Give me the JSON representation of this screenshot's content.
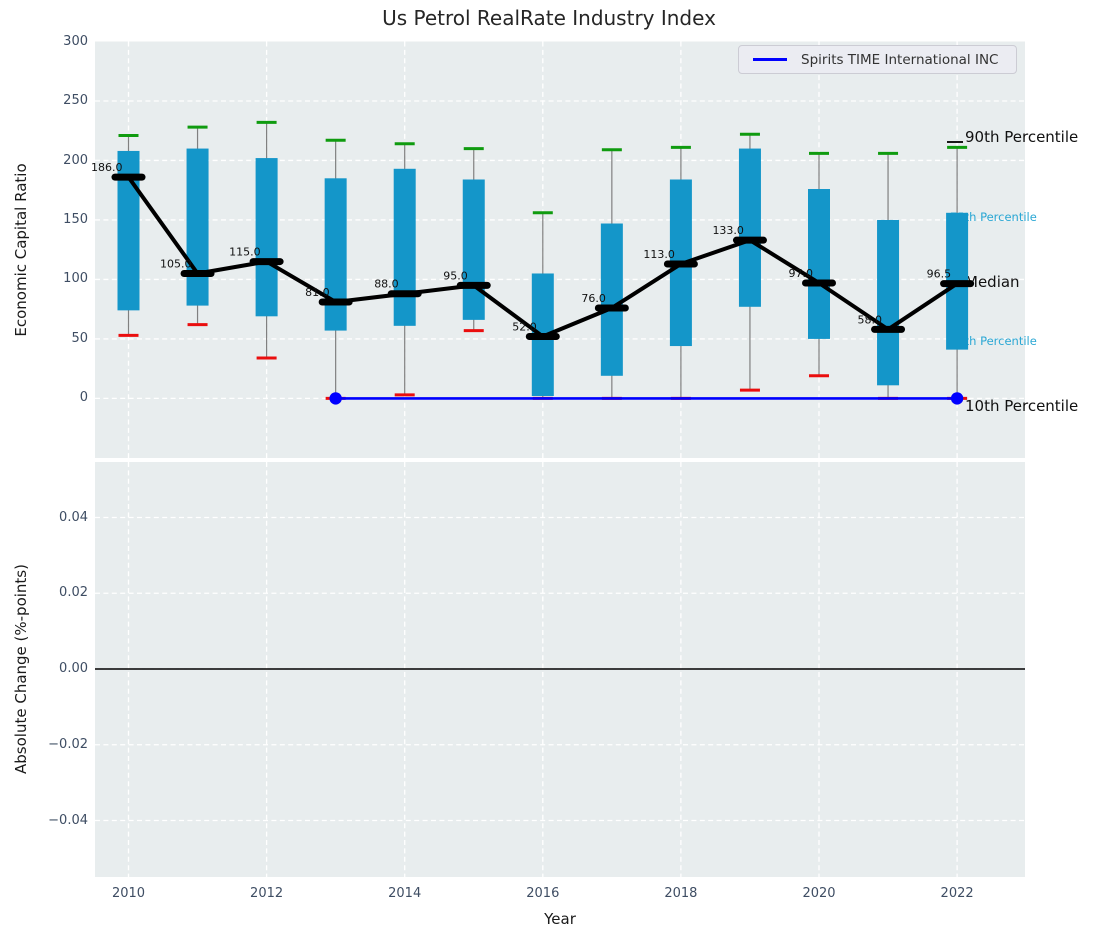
{
  "title": "Us Petrol RealRate Industry Index",
  "legend": {
    "label": "Spirits TIME International INC"
  },
  "colors": {
    "bar": "#1496c9",
    "p90_cap": "#0f9b0f",
    "p10_cap": "#ea0e0e",
    "median": "#000000",
    "company_line": "#0000ff",
    "axes_bg": "#e8edee",
    "grid": "#ffffff",
    "tick_label": "#3e4d63",
    "title_color": "#262626",
    "small_percentile_label": "#2aa7d4",
    "whisker": "#808080"
  },
  "chart_data": [
    {
      "type": "candlestick-percentiles",
      "title": "Us Petrol RealRate Industry Index",
      "ylabel": "Economic Capital Ratio",
      "ylim": [
        -50,
        300
      ],
      "yticks": [
        "0",
        "50",
        "100",
        "150",
        "200",
        "250",
        "300"
      ],
      "ytick_values": [
        0,
        50,
        100,
        150,
        200,
        250,
        300
      ],
      "xlim": [
        2009.5,
        2023
      ],
      "grid": "white dashed",
      "legend_position": "upper right",
      "categories": [
        2010,
        2011,
        2012,
        2013,
        2014,
        2015,
        2016,
        2017,
        2018,
        2019,
        2020,
        2021,
        2022
      ],
      "series": [
        {
          "name": "90th Percentile",
          "values": [
            221,
            228,
            232,
            217,
            214,
            210,
            156,
            209,
            211,
            222,
            206,
            206,
            211
          ]
        },
        {
          "name": "75th Percentile",
          "values": [
            208,
            210,
            202,
            185,
            193,
            184,
            105,
            147,
            184,
            210,
            176,
            150,
            156
          ]
        },
        {
          "name": "Median",
          "values": [
            186,
            105,
            115,
            81,
            88,
            95,
            52,
            76,
            113,
            133,
            97,
            58,
            96.5
          ]
        },
        {
          "name": "25th Percentile",
          "values": [
            74,
            78,
            69,
            57,
            61,
            66,
            2,
            19,
            44,
            77,
            50,
            11,
            41
          ]
        },
        {
          "name": "10th Percentile",
          "values": [
            53,
            62,
            34,
            0,
            3,
            57,
            0,
            0,
            0,
            7,
            19,
            0,
            0
          ]
        }
      ],
      "median_value_labels": [
        "186.0",
        "105.0",
        "115.0",
        "81.0",
        "88.0",
        "95.0",
        "52.0",
        "76.0",
        "113.0",
        "133.0",
        "97.0",
        "58.0",
        "96.5"
      ],
      "company_series": {
        "name": "Spirits TIME International INC",
        "x": [
          2013,
          2022
        ],
        "values": [
          0,
          0
        ]
      },
      "right_labels": [
        {
          "text": "90th Percentile",
          "at_value": 219,
          "style": "large"
        },
        {
          "text": "75th Percentile",
          "at_value": 152,
          "style": "small"
        },
        {
          "text": "Median",
          "at_value": 97,
          "style": "large"
        },
        {
          "text": "25th Percentile",
          "at_value": 48,
          "style": "small"
        },
        {
          "text": "10th Percentile",
          "at_value": -7,
          "style": "large"
        }
      ]
    },
    {
      "type": "line",
      "ylabel": "Absolute Change (%-points)",
      "xlabel": "Year",
      "ylim": [
        -0.055,
        0.055
      ],
      "yticks": [
        "−0.04",
        "−0.02",
        "0.00",
        "0.02",
        "0.04"
      ],
      "ytick_values": [
        -0.04,
        -0.02,
        0.0,
        0.02,
        0.04
      ],
      "xticks": [
        "2010",
        "2012",
        "2014",
        "2016",
        "2018",
        "2020",
        "2022"
      ],
      "xtick_values": [
        2010,
        2012,
        2014,
        2016,
        2018,
        2020,
        2022
      ],
      "zero_line": true,
      "series": []
    }
  ]
}
